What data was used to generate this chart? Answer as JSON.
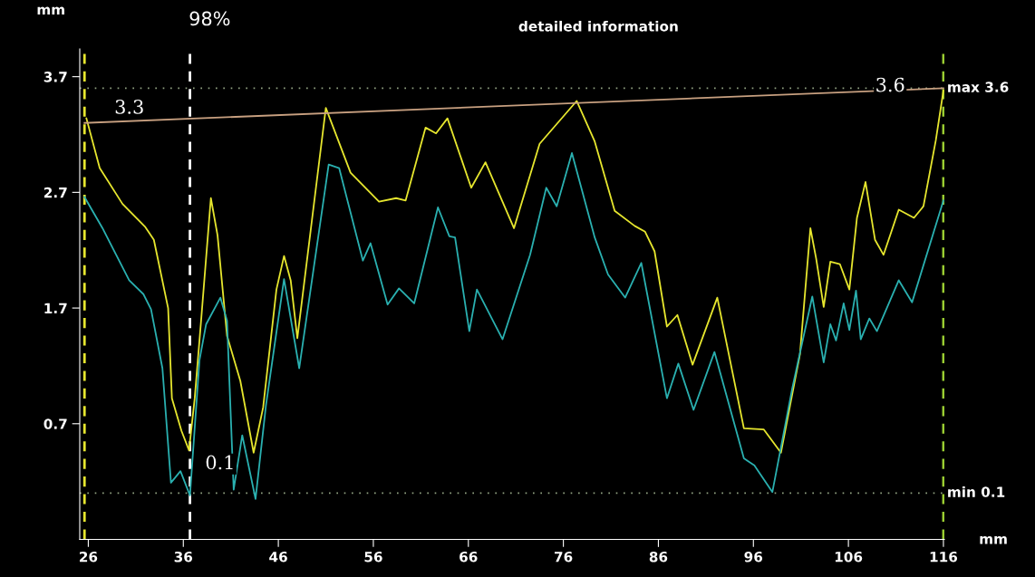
{
  "chart_data": {
    "type": "line",
    "title": "detailed information",
    "xlabel": "mm",
    "ylabel": "mm",
    "xlim": [
      25.1,
      116.1
    ],
    "ylim": [
      -0.3,
      3.94
    ],
    "xticks": [
      26,
      36,
      46,
      56,
      66,
      76,
      86,
      96,
      106,
      116
    ],
    "yticks": [
      0.7,
      1.7,
      2.7,
      3.7
    ],
    "grid": false,
    "marker": "none",
    "series": [
      {
        "color": "#e6e62e",
        "x": [
          25.8,
          27.2,
          29.6,
          32.0,
          32.9,
          34.4,
          34.8,
          35.8,
          36.6,
          37.2,
          37.9,
          38.9,
          39.6,
          40.6,
          42.0,
          43.4,
          44.4,
          45.8,
          46.6,
          47.3,
          48.0,
          51.0,
          52.3,
          53.6,
          56.6,
          58.4,
          59.4,
          61.5,
          62.6,
          63.8,
          66.3,
          67.8,
          70.8,
          73.5,
          77.4,
          79.3,
          81.4,
          83.5,
          84.6,
          85.6,
          86.9,
          88.0,
          89.6,
          92.2,
          95.0,
          97.1,
          98.9,
          100.9,
          102.0,
          102.6,
          103.4,
          104.1,
          105.1,
          106.1,
          106.9,
          107.8,
          108.8,
          109.7,
          111.3,
          112.9,
          113.9,
          115.2,
          116.0
        ],
        "values": [
          3.34,
          2.91,
          2.6,
          2.4,
          2.29,
          1.7,
          0.92,
          0.64,
          0.47,
          0.92,
          1.62,
          2.65,
          2.33,
          1.46,
          1.07,
          0.45,
          0.84,
          1.86,
          2.15,
          1.94,
          1.44,
          3.43,
          3.15,
          2.87,
          2.62,
          2.65,
          2.63,
          3.26,
          3.21,
          3.34,
          2.74,
          2.96,
          2.39,
          3.12,
          3.49,
          3.14,
          2.54,
          2.41,
          2.36,
          2.19,
          1.54,
          1.64,
          1.21,
          1.79,
          0.66,
          0.65,
          0.45,
          1.3,
          2.39,
          2.13,
          1.71,
          2.1,
          2.08,
          1.86,
          2.48,
          2.79,
          2.29,
          2.16,
          2.55,
          2.48,
          2.58,
          3.15,
          3.58
        ]
      },
      {
        "color": "#2ab0b0",
        "x": [
          25.6,
          27.5,
          30.3,
          31.8,
          32.6,
          33.8,
          34.7,
          35.7,
          36.7,
          37.7,
          38.4,
          39.9,
          40.6,
          41.3,
          42.2,
          43.6,
          44.7,
          46.6,
          48.2,
          51.3,
          52.4,
          54.9,
          55.7,
          57.5,
          58.7,
          60.3,
          62.8,
          64.0,
          64.6,
          66.1,
          66.9,
          69.6,
          72.5,
          74.2,
          75.3,
          76.9,
          79.3,
          80.7,
          82.5,
          84.2,
          86.9,
          88.1,
          89.7,
          91.9,
          95.0,
          96.1,
          98.0,
          100.1,
          102.2,
          103.4,
          104.1,
          104.7,
          105.5,
          106.1,
          106.8,
          107.3,
          108.2,
          109.0,
          111.3,
          112.7,
          116.0
        ],
        "values": [
          2.66,
          2.39,
          1.94,
          1.82,
          1.69,
          1.18,
          0.19,
          0.29,
          0.08,
          1.25,
          1.56,
          1.79,
          1.59,
          0.13,
          0.6,
          0.05,
          0.86,
          1.95,
          1.18,
          2.94,
          2.91,
          2.11,
          2.26,
          1.73,
          1.87,
          1.74,
          2.57,
          2.32,
          2.31,
          1.5,
          1.86,
          1.43,
          2.16,
          2.74,
          2.58,
          3.04,
          2.31,
          1.99,
          1.79,
          2.09,
          0.92,
          1.22,
          0.82,
          1.32,
          0.4,
          0.34,
          0.11,
          1.01,
          1.8,
          1.23,
          1.56,
          1.42,
          1.74,
          1.51,
          1.85,
          1.43,
          1.61,
          1.5,
          1.94,
          1.75,
          2.63
        ]
      },
      {
        "color": "#c8a080",
        "x": [
          25.6,
          116.0
        ],
        "values": [
          3.3,
          3.6
        ]
      }
    ],
    "ref_lines": [
      {
        "axis": "y",
        "value": 3.6,
        "label": "max 3.6",
        "color": "#8fa080",
        "line_style": "dotted"
      },
      {
        "axis": "y",
        "value": 0.1,
        "label": "min 0.1",
        "color": "#8fa080",
        "line_style": "dotted"
      },
      {
        "axis": "x",
        "value": 36.7,
        "color": "#ffffff",
        "line_style": "dashed"
      },
      {
        "axis": "x",
        "value": 25.6,
        "color": "#e6e62e",
        "line_style": "dashed"
      },
      {
        "axis": "x",
        "value": 116.0,
        "color": "#9acd32",
        "line_style": "dashed"
      }
    ],
    "annotations": [
      "98%",
      "3.3",
      "3.6",
      "0.1"
    ]
  }
}
